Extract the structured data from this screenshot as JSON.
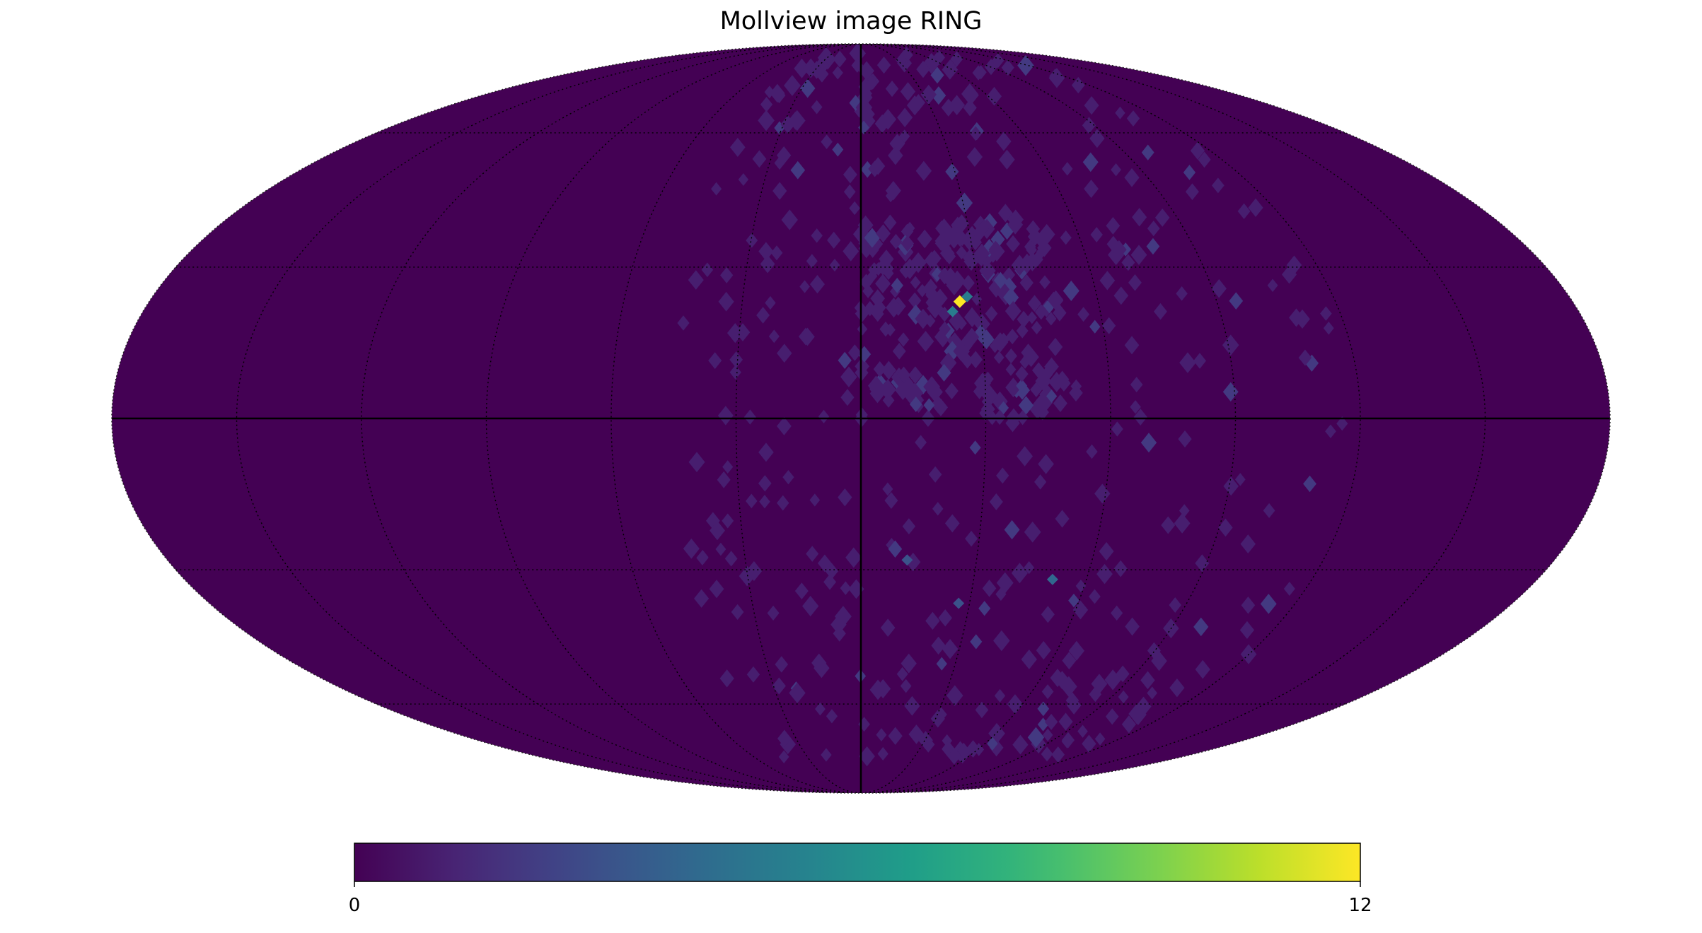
{
  "chart_data": {
    "type": "heatmap",
    "projection": "mollweide",
    "title": "Mollview image RING",
    "graticule": {
      "longitude_step_deg": 30,
      "latitude_step_deg": 30,
      "main_axes_solid": true,
      "style": "dotted"
    },
    "colormap": "viridis",
    "colorbar": {
      "orientation": "horizontal",
      "min": 0,
      "max": 12,
      "tick_labels": [
        "0",
        "12"
      ]
    },
    "background_value": 0,
    "hotspots": [
      {
        "lon": 25,
        "lat": 23,
        "value": 12
      },
      {
        "lon": 23,
        "lat": 21,
        "value": 5
      },
      {
        "lon": 27,
        "lat": 24,
        "value": 5
      },
      {
        "lon": 51,
        "lat": -32,
        "value": 4
      },
      {
        "lon": 27,
        "lat": -37,
        "value": 3
      },
      {
        "lon": 12,
        "lat": -28,
        "value": 3
      }
    ],
    "sparse_values": {
      "region_lon_range": [
        -45,
        120
      ],
      "region_lat_range": [
        -75,
        85
      ],
      "typical_value": 1,
      "dense_near_lon_lat": [
        25,
        20
      ]
    }
  }
}
